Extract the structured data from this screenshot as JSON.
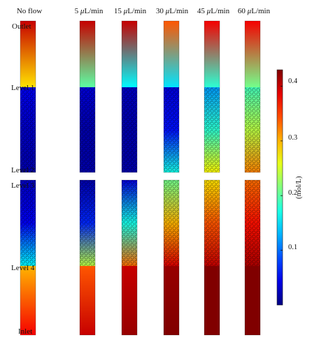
{
  "column_headers": [
    {
      "prefix": "",
      "symbol": "",
      "suffix": "No flow"
    },
    {
      "prefix": "5 ",
      "symbol": "μ",
      "suffix": "L/min"
    },
    {
      "prefix": "15 ",
      "symbol": "μ",
      "suffix": "L/min"
    },
    {
      "prefix": "30 ",
      "symbol": "μ",
      "suffix": "L/min"
    },
    {
      "prefix": "45 ",
      "symbol": "μ",
      "suffix": "L/min"
    },
    {
      "prefix": "60 ",
      "symbol": "μ",
      "suffix": "L/min"
    }
  ],
  "row_labels": {
    "outlet": "Outlet",
    "level1": "Level 1",
    "level2": "Level 2",
    "level3": "Level 3",
    "level4": "Level 4",
    "inlet": "Inlet"
  },
  "colorbar": {
    "ticks": [
      "0.4",
      "0.3",
      "0.2",
      "0.1"
    ],
    "tick_values": [
      0.4,
      0.3,
      0.2,
      0.1
    ],
    "min": 0.0,
    "max": 0.43,
    "unit": "(mol/L)",
    "colormap": "jet"
  },
  "columns_concentration": [
    {
      "outlet_top": 0.4,
      "outlet_bottom": 0.28,
      "l1": 0.05,
      "l1_mid": 0.03,
      "l2": 0.02,
      "l3": 0.03,
      "l3_mid": 0.05,
      "l4": 0.16,
      "inlet_top": 0.3,
      "inlet_bottom": 0.38
    },
    {
      "outlet_top": 0.4,
      "outlet_bottom": 0.2,
      "l1": 0.04,
      "l1_mid": 0.02,
      "l2": 0.02,
      "l3": 0.02,
      "l3_mid": 0.07,
      "l4": 0.24,
      "inlet_top": 0.34,
      "inlet_bottom": 0.4
    },
    {
      "outlet_top": 0.4,
      "outlet_bottom": 0.16,
      "l1": 0.03,
      "l1_mid": 0.02,
      "l2": 0.02,
      "l3": 0.04,
      "l3_mid": 0.17,
      "l4": 0.33,
      "inlet_top": 0.4,
      "inlet_bottom": 0.42
    },
    {
      "outlet_top": 0.34,
      "outlet_bottom": 0.15,
      "l1": 0.04,
      "l1_mid": 0.06,
      "l2": 0.17,
      "l3": 0.21,
      "l3_mid": 0.3,
      "l4": 0.39,
      "inlet_top": 0.42,
      "inlet_bottom": 0.43
    },
    {
      "outlet_top": 0.38,
      "outlet_bottom": 0.18,
      "l1": 0.12,
      "l1_mid": 0.18,
      "l2": 0.27,
      "l3": 0.28,
      "l3_mid": 0.34,
      "l4": 0.4,
      "inlet_top": 0.43,
      "inlet_bottom": 0.43
    },
    {
      "outlet_top": 0.38,
      "outlet_bottom": 0.21,
      "l1": 0.19,
      "l1_mid": 0.24,
      "l2": 0.32,
      "l3": 0.33,
      "l3_mid": 0.37,
      "l4": 0.41,
      "inlet_top": 0.43,
      "inlet_bottom": 0.43
    }
  ]
}
